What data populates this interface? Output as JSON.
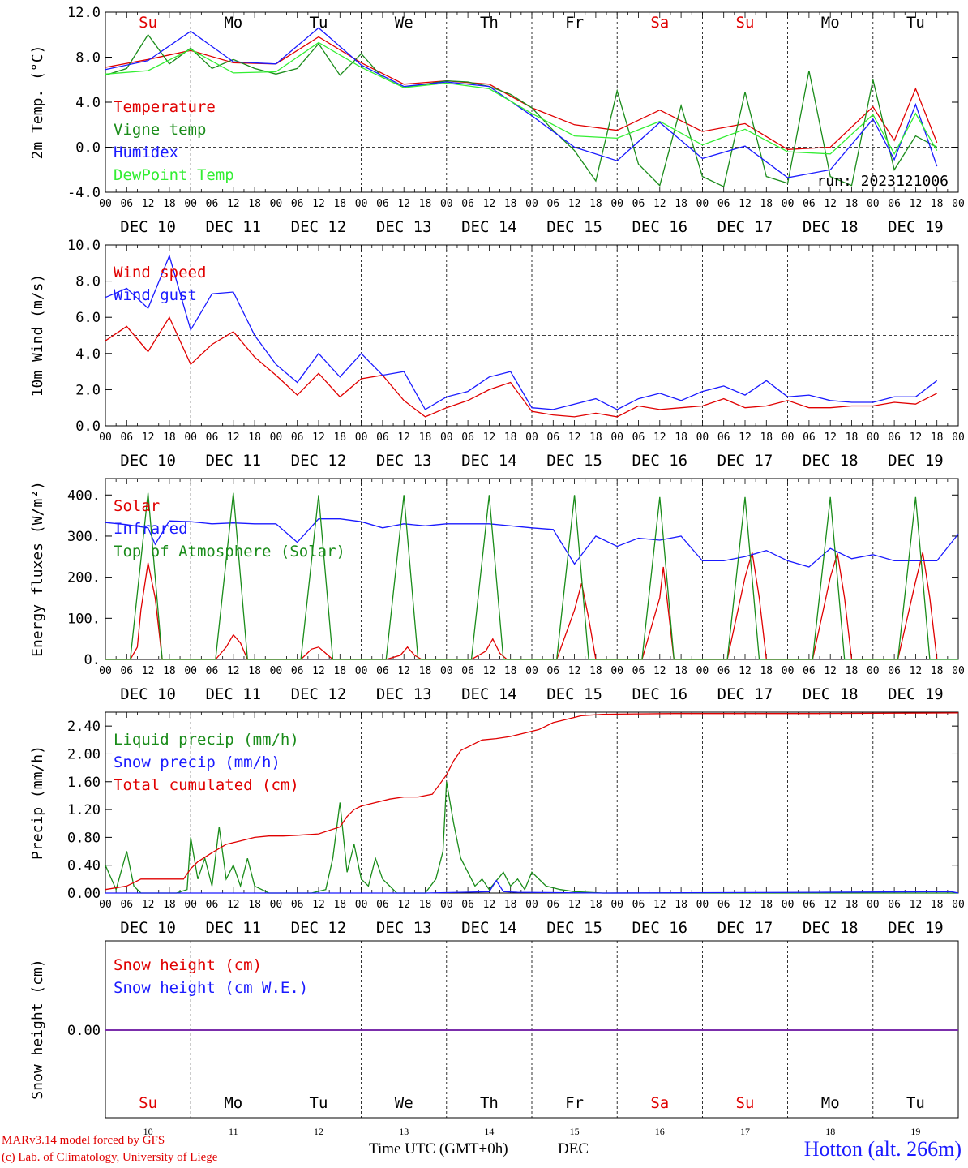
{
  "days": [
    "10",
    "11",
    "12",
    "13",
    "14",
    "15",
    "16",
    "17",
    "18",
    "19"
  ],
  "weekdays": [
    "Su",
    "Mo",
    "Tu",
    "We",
    "Th",
    "Fr",
    "Sa",
    "Su",
    "Mo",
    "Tu"
  ],
  "weekend_flags": [
    true,
    false,
    false,
    false,
    false,
    false,
    true,
    true,
    false,
    false
  ],
  "month": "DEC",
  "hour_ticks": [
    "00",
    "06",
    "12",
    "18"
  ],
  "footer": {
    "credit_line1": "MARv3.14 model forced by GFS",
    "credit_line2": "(c) Lab. of Climatology, University of Liege",
    "x_title": "Time UTC (GMT+0h)",
    "x_title_month": "DEC",
    "station": "Hotton (alt. 266m)"
  },
  "colors": {
    "red": "#e00000",
    "green": "#1a8c1a",
    "blue": "#1a1aff",
    "lightgreen": "#33ee33",
    "purple": "#7a2aa8",
    "black": "#000000"
  },
  "chart_data": [
    {
      "type": "line",
      "ylabel": "2m Temp. (°C)",
      "ylim": [
        -4,
        12
      ],
      "yticks": [
        "-4.0",
        "0.0",
        "4.0",
        "8.0",
        "12.0"
      ],
      "ytick_values": [
        -4,
        0,
        4,
        8,
        12
      ],
      "ref_line": 0,
      "annotation": "run: 2023121006",
      "series": [
        {
          "name": "Temperature",
          "color": "#e00000",
          "x": [
            0,
            12,
            24,
            36,
            48,
            60,
            72,
            84,
            96,
            108,
            120,
            132,
            144,
            156,
            168,
            180,
            192,
            204,
            216,
            222,
            228,
            234
          ],
          "y": [
            7.1,
            7.8,
            8.6,
            7.5,
            7.4,
            9.8,
            7.5,
            5.6,
            5.9,
            5.6,
            3.5,
            2.0,
            1.5,
            3.3,
            1.4,
            2.1,
            -0.2,
            0.0,
            3.6,
            0.6,
            5.2,
            0.4
          ]
        },
        {
          "name": "Vigne temp",
          "color": "#1a8c1a",
          "x": [
            0,
            6,
            12,
            18,
            24,
            30,
            36,
            42,
            48,
            54,
            60,
            66,
            72,
            78,
            84,
            90,
            96,
            102,
            108,
            114,
            120,
            126,
            132,
            138,
            144,
            150,
            156,
            162,
            168,
            174,
            180,
            186,
            192,
            198,
            204,
            210,
            216,
            222,
            228,
            234
          ],
          "y": [
            6.4,
            7.0,
            10.0,
            7.4,
            8.8,
            7.0,
            7.8,
            7.0,
            6.5,
            7.0,
            9.2,
            6.4,
            8.3,
            6.2,
            5.3,
            5.6,
            5.9,
            5.8,
            5.4,
            4.7,
            3.5,
            1.5,
            -0.3,
            -3.0,
            5.0,
            -1.5,
            -3.4,
            3.7,
            -2.6,
            -3.5,
            4.9,
            -2.6,
            -3.2,
            6.8,
            -2.6,
            -3.4,
            6.0,
            -2.0,
            1.0,
            0.0
          ]
        },
        {
          "name": "Humidex",
          "color": "#1a1aff",
          "x": [
            0,
            12,
            24,
            36,
            48,
            60,
            72,
            84,
            96,
            108,
            120,
            132,
            144,
            156,
            168,
            180,
            192,
            204,
            216,
            222,
            228,
            234
          ],
          "y": [
            6.9,
            7.7,
            10.3,
            7.6,
            7.4,
            10.6,
            7.3,
            5.4,
            5.8,
            5.4,
            2.8,
            0.0,
            -1.2,
            2.2,
            -1.0,
            0.1,
            -2.7,
            -2.0,
            2.5,
            -1.1,
            3.8,
            -1.7
          ]
        },
        {
          "name": "DewPoint Temp",
          "color": "#33ee33",
          "x": [
            0,
            12,
            24,
            36,
            48,
            60,
            72,
            84,
            96,
            108,
            120,
            132,
            144,
            156,
            168,
            180,
            192,
            204,
            216,
            222,
            228,
            234
          ],
          "y": [
            6.5,
            6.8,
            8.7,
            6.6,
            6.7,
            9.3,
            7.1,
            5.3,
            5.7,
            5.2,
            3.0,
            1.0,
            0.8,
            2.3,
            0.2,
            1.6,
            -0.4,
            -0.6,
            2.9,
            -0.6,
            3.0,
            -0.3
          ]
        }
      ]
    },
    {
      "type": "line",
      "ylabel": "10m Wind (m/s)",
      "ylim": [
        0,
        10
      ],
      "yticks": [
        "0.0",
        "2.0",
        "4.0",
        "6.0",
        "8.0",
        "10.0"
      ],
      "ytick_values": [
        0,
        2,
        4,
        6,
        8,
        10
      ],
      "ref_line": 5,
      "series": [
        {
          "name": "Wind speed",
          "color": "#e00000",
          "x": [
            0,
            6,
            12,
            18,
            24,
            30,
            36,
            42,
            48,
            54,
            60,
            66,
            72,
            78,
            84,
            90,
            96,
            102,
            108,
            114,
            120,
            126,
            132,
            138,
            144,
            150,
            156,
            162,
            168,
            174,
            180,
            186,
            192,
            198,
            204,
            210,
            216,
            222,
            228,
            234
          ],
          "y": [
            4.7,
            5.5,
            4.1,
            6.0,
            3.4,
            4.5,
            5.2,
            3.8,
            2.8,
            1.7,
            2.9,
            1.6,
            2.6,
            2.8,
            1.4,
            0.5,
            1.0,
            1.4,
            2.0,
            2.4,
            0.8,
            0.6,
            0.5,
            0.7,
            0.5,
            1.1,
            0.9,
            1.0,
            1.1,
            1.5,
            1.0,
            1.1,
            1.4,
            1.0,
            1.0,
            1.1,
            1.1,
            1.3,
            1.2,
            1.8
          ]
        },
        {
          "name": "Wind gust",
          "color": "#1a1aff",
          "x": [
            0,
            6,
            12,
            18,
            24,
            30,
            36,
            42,
            48,
            54,
            60,
            66,
            72,
            78,
            84,
            90,
            96,
            102,
            108,
            114,
            120,
            126,
            132,
            138,
            144,
            150,
            156,
            162,
            168,
            174,
            180,
            186,
            192,
            198,
            204,
            210,
            216,
            222,
            228,
            234
          ],
          "y": [
            7.1,
            7.6,
            6.5,
            9.4,
            5.3,
            7.3,
            7.4,
            5.0,
            3.4,
            2.4,
            4.0,
            2.7,
            4.0,
            2.8,
            3.0,
            0.9,
            1.6,
            1.9,
            2.7,
            3.0,
            1.0,
            0.9,
            1.2,
            1.5,
            0.9,
            1.5,
            1.8,
            1.4,
            1.9,
            2.2,
            1.7,
            2.5,
            1.6,
            1.7,
            1.4,
            1.3,
            1.3,
            1.6,
            1.6,
            2.5
          ]
        }
      ]
    },
    {
      "type": "line",
      "ylabel": "Energy fluxes (W/m²)",
      "ylim": [
        0,
        440
      ],
      "yticks": [
        "0.",
        "100.",
        "200.",
        "300.",
        "400."
      ],
      "ytick_values": [
        0,
        100,
        200,
        300,
        400
      ],
      "series": [
        {
          "name": "Solar",
          "color": "#e00000",
          "x": [
            0,
            7,
            9,
            10,
            12,
            14,
            16,
            24,
            31,
            34,
            36,
            38,
            40,
            48,
            55,
            58,
            60,
            62,
            64,
            72,
            79,
            83,
            85,
            87,
            89,
            96,
            103,
            107,
            109,
            111,
            113,
            120,
            127,
            132,
            134,
            136,
            138,
            144,
            151,
            156,
            157,
            158,
            160,
            168,
            175,
            180,
            182,
            184,
            186,
            192,
            199,
            204,
            206,
            208,
            210,
            216,
            223,
            228,
            230,
            232,
            234
          ],
          "y": [
            0,
            0,
            30,
            120,
            235,
            150,
            0,
            0,
            0,
            30,
            60,
            40,
            0,
            0,
            0,
            25,
            30,
            15,
            0,
            0,
            0,
            10,
            30,
            10,
            0,
            0,
            0,
            20,
            50,
            15,
            0,
            0,
            0,
            120,
            185,
            100,
            0,
            0,
            0,
            150,
            225,
            150,
            0,
            0,
            0,
            200,
            260,
            150,
            0,
            0,
            0,
            200,
            258,
            150,
            0,
            0,
            0,
            190,
            260,
            150,
            0
          ]
        },
        {
          "name": "Infrared",
          "color": "#1a1aff",
          "x": [
            0,
            6,
            12,
            14,
            18,
            24,
            30,
            36,
            42,
            48,
            54,
            60,
            66,
            72,
            78,
            84,
            90,
            96,
            108,
            120,
            126,
            132,
            138,
            144,
            150,
            156,
            162,
            168,
            174,
            180,
            186,
            192,
            198,
            204,
            210,
            216,
            222,
            228,
            234,
            240
          ],
          "y": [
            333,
            328,
            320,
            280,
            337,
            335,
            330,
            332,
            330,
            330,
            285,
            342,
            342,
            335,
            320,
            330,
            325,
            330,
            330,
            320,
            316,
            232,
            300,
            275,
            295,
            290,
            300,
            240,
            240,
            250,
            265,
            240,
            225,
            270,
            245,
            255,
            240,
            240,
            240,
            305
          ]
        },
        {
          "name": "Top of Atmosphere (Solar)",
          "color": "#1a8c1a",
          "x": [
            0,
            7,
            12,
            16,
            24,
            31,
            36,
            40,
            48,
            55,
            60,
            64,
            72,
            79,
            84,
            88,
            96,
            103,
            108,
            112,
            120,
            127,
            132,
            136,
            144,
            151,
            156,
            160,
            168,
            175,
            180,
            184,
            192,
            199,
            204,
            208,
            216,
            223,
            228,
            232,
            240
          ],
          "y": [
            0,
            0,
            405,
            0,
            0,
            0,
            405,
            0,
            0,
            0,
            400,
            0,
            0,
            0,
            400,
            0,
            0,
            0,
            400,
            0,
            0,
            0,
            400,
            0,
            0,
            0,
            395,
            0,
            0,
            0,
            395,
            0,
            0,
            0,
            395,
            0,
            0,
            0,
            395,
            0,
            0
          ]
        }
      ]
    },
    {
      "type": "line",
      "ylabel": "Precip (mm/h)",
      "ylim": [
        0,
        2.6
      ],
      "yticks": [
        "0.00",
        "0.40",
        "0.80",
        "1.20",
        "1.60",
        "2.00",
        "2.40"
      ],
      "ytick_values": [
        0,
        0.4,
        0.8,
        1.2,
        1.6,
        2.0,
        2.4
      ],
      "series": [
        {
          "name": "Liquid precip (mm/h)",
          "color": "#1a8c1a",
          "x": [
            0,
            3,
            6,
            8,
            10,
            12,
            16,
            20,
            23,
            24,
            26,
            28,
            30,
            32,
            34,
            36,
            38,
            40,
            42,
            46,
            50,
            54,
            58,
            62,
            64,
            66,
            68,
            70,
            72,
            74,
            76,
            78,
            80,
            82,
            86,
            90,
            93,
            95,
            96,
            98,
            100,
            102,
            104,
            106,
            108,
            112,
            114,
            116,
            118,
            120,
            124,
            128,
            132,
            140,
            240
          ],
          "y": [
            0.4,
            0.05,
            0.6,
            0.1,
            0.0,
            0.0,
            0.0,
            0.0,
            0.05,
            0.8,
            0.2,
            0.5,
            0.1,
            0.95,
            0.2,
            0.4,
            0.1,
            0.5,
            0.1,
            0.0,
            0.0,
            0.0,
            0.0,
            0.05,
            0.5,
            1.3,
            0.3,
            0.7,
            0.2,
            0.1,
            0.5,
            0.2,
            0.1,
            0.0,
            0.0,
            0.0,
            0.2,
            0.6,
            1.6,
            1.0,
            0.5,
            0.3,
            0.1,
            0.2,
            0.05,
            0.3,
            0.1,
            0.2,
            0.05,
            0.3,
            0.1,
            0.05,
            0.02,
            0.0,
            0.0
          ]
        },
        {
          "name": "Snow precip (mm/h)",
          "color": "#1a1aff",
          "x": [
            0,
            90,
            100,
            108,
            110,
            112,
            116,
            140,
            200,
            238,
            240
          ],
          "y": [
            0,
            0,
            0.01,
            0.02,
            0.18,
            0.02,
            0.01,
            0.0,
            0.01,
            0.02,
            0.0
          ]
        },
        {
          "name": "Total cumulated (cm)",
          "color": "#e00000",
          "x": [
            0,
            6,
            10,
            14,
            18,
            22,
            24,
            26,
            30,
            34,
            38,
            42,
            46,
            50,
            54,
            60,
            66,
            68,
            70,
            72,
            76,
            80,
            84,
            88,
            92,
            96,
            98,
            100,
            102,
            104,
            106,
            110,
            114,
            118,
            122,
            126,
            130,
            134,
            140,
            160,
            200,
            240
          ],
          "y": [
            0.05,
            0.1,
            0.2,
            0.2,
            0.2,
            0.2,
            0.35,
            0.45,
            0.58,
            0.7,
            0.75,
            0.8,
            0.82,
            0.82,
            0.83,
            0.85,
            0.95,
            1.1,
            1.2,
            1.25,
            1.3,
            1.35,
            1.38,
            1.38,
            1.42,
            1.7,
            1.9,
            2.05,
            2.1,
            2.15,
            2.2,
            2.22,
            2.25,
            2.3,
            2.35,
            2.45,
            2.5,
            2.55,
            2.57,
            2.58,
            2.58,
            2.59
          ]
        }
      ]
    },
    {
      "type": "line",
      "ylabel": "Snow height (cm)",
      "yticks": [
        "0.00"
      ],
      "ytick_values": [
        0
      ],
      "series": [
        {
          "name": "Snow height (cm)",
          "color": "#e00000",
          "x": [
            0,
            240
          ],
          "y": [
            0,
            0
          ]
        },
        {
          "name": "Snow height (cm W.E.)",
          "color": "#1a1aff",
          "x": [
            0,
            240
          ],
          "y": [
            0,
            0
          ]
        }
      ]
    }
  ]
}
